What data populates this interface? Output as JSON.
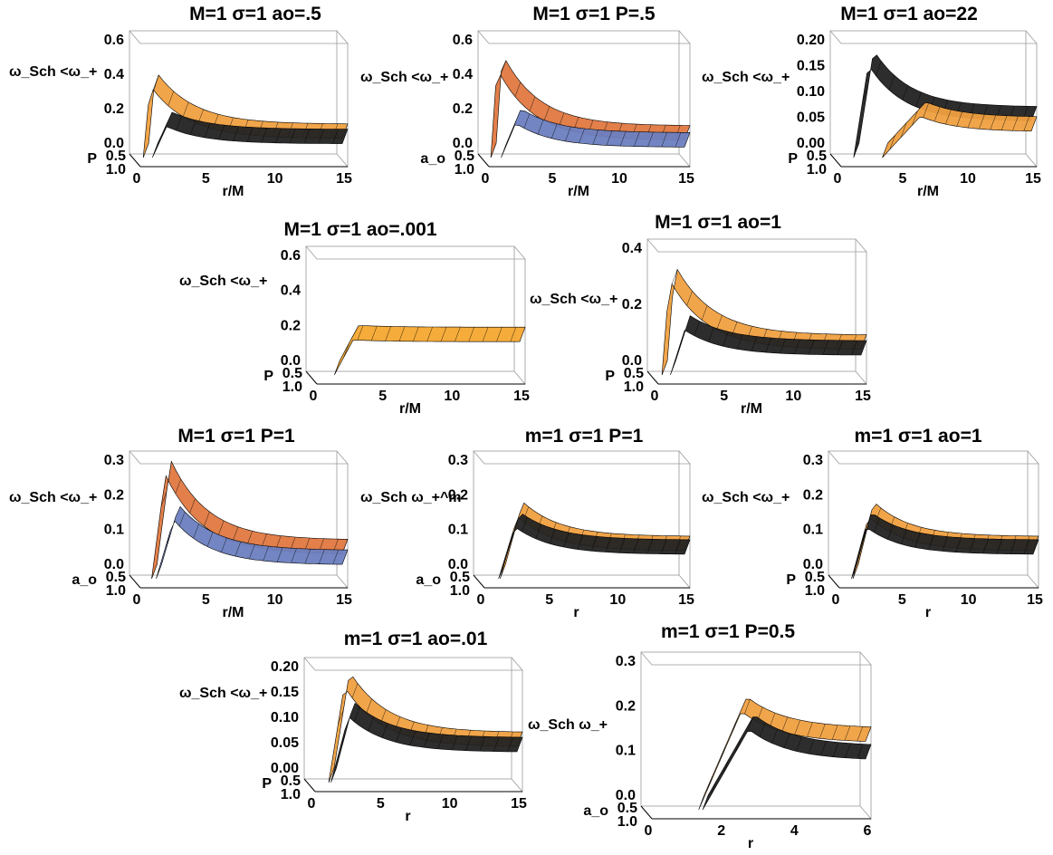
{
  "chart_data": [
    {
      "type": "surface3d",
      "title": "M=1 σ=1 ao=.5",
      "xlabel": "r/M",
      "ylabel": "P",
      "zlabel": "ω_Sch <ω_+",
      "xticks": [
        "0",
        "5",
        "10",
        "15"
      ],
      "yticks": [
        "0.5",
        "1.0"
      ],
      "zticks": [
        "0.0",
        "0.2",
        "0.4",
        "0.6"
      ],
      "surfaces": [
        {
          "color": "#f0a040",
          "peak_r": 1.1,
          "peak_z": 0.42,
          "tail_z": 0.11
        },
        {
          "color": "#222222",
          "peak_r": 2.3,
          "peak_z": 0.18,
          "tail_z": 0.08
        }
      ]
    },
    {
      "type": "surface3d",
      "title": "M=1 σ=1 P=.5",
      "xlabel": "r/M",
      "ylabel": "a_o",
      "zlabel": "ω_Sch <ω_+",
      "xticks": [
        "0",
        "5",
        "10",
        "15"
      ],
      "yticks": [
        "0.5",
        "1.0"
      ],
      "zticks": [
        "0.0",
        "0.2",
        "0.4",
        "0.6"
      ],
      "surfaces": [
        {
          "color": "#e07840",
          "peak_r": 1.0,
          "peak_z": 0.52,
          "tail_z": 0.1
        },
        {
          "color": "#6b7fc0",
          "peak_r": 2.4,
          "peak_z": 0.2,
          "tail_z": 0.06
        }
      ]
    },
    {
      "type": "surface3d",
      "title": "M=1 σ=1 ao=22",
      "xlabel": "r/M",
      "ylabel": "P",
      "zlabel": "ω_Sch <ω_+",
      "xticks": [
        "0",
        "5",
        "10",
        "15"
      ],
      "yticks": [
        "0.5",
        "1.0"
      ],
      "zticks": [
        "0.00",
        "0.05",
        "0.10",
        "0.15",
        "0.20"
      ],
      "surfaces": [
        {
          "color": "#222222",
          "peak_r": 2.5,
          "peak_z": 0.18,
          "tail_z": 0.07
        },
        {
          "color": "#f0a040",
          "peak_r": 6.5,
          "peak_z": 0.08,
          "tail_z": 0.05
        }
      ]
    },
    {
      "type": "surface3d",
      "title": "M=1 σ=1 ao=.001",
      "xlabel": "r/M",
      "ylabel": "P",
      "zlabel": "ω_Sch <ω_+",
      "xticks": [
        "0",
        "5",
        "10",
        "15"
      ],
      "yticks": [
        "0.5",
        "1.0"
      ],
      "zticks": [
        "0.0",
        "0.2",
        "0.4",
        "0.6"
      ],
      "surfaces": [
        {
          "color": "#f5a830",
          "peak_r": 3.0,
          "peak_z": 0.2,
          "tail_z": 0.19
        }
      ]
    },
    {
      "type": "surface3d",
      "title": "M=1 σ=1 ao=1",
      "xlabel": "r/M",
      "ylabel": "P",
      "zlabel": "ω_Sch <ω_+",
      "xticks": [
        "0",
        "5",
        "10",
        "15"
      ],
      "yticks": [
        "0.5",
        "1.0"
      ],
      "zticks": [
        "0.0",
        "0.2",
        "0.4"
      ],
      "surfaces": [
        {
          "color": "#f0a040",
          "peak_r": 1.2,
          "peak_z": 0.34,
          "tail_z": 0.09
        },
        {
          "color": "#222222",
          "peak_r": 2.3,
          "peak_z": 0.16,
          "tail_z": 0.07
        }
      ]
    },
    {
      "type": "surface3d",
      "title": "M=1 σ=1 P=1",
      "xlabel": "r/M",
      "ylabel": "a_o",
      "zlabel": "ω_Sch <ω_+",
      "xticks": [
        "0",
        "5",
        "10",
        "15"
      ],
      "yticks": [
        "0.5",
        "1.0"
      ],
      "zticks": [
        "0.0",
        "0.1",
        "0.2",
        "0.3"
      ],
      "surfaces": [
        {
          "color": "#e07840",
          "peak_r": 2.2,
          "peak_z": 0.3,
          "tail_z": 0.07
        },
        {
          "color": "#6b7fc0",
          "peak_r": 2.8,
          "peak_z": 0.17,
          "tail_z": 0.04
        }
      ]
    },
    {
      "type": "surface3d",
      "title": "m=1 σ=1 P=1",
      "xlabel": "r",
      "ylabel": "a_o",
      "zlabel": "ω_Sch ω_+^m",
      "xticks": [
        "0",
        "5",
        "10",
        "15"
      ],
      "yticks": [
        "0.5",
        "1.0"
      ],
      "zticks": [
        "0.0",
        "0.1",
        "0.2",
        "0.3"
      ],
      "surfaces": [
        {
          "color": "#f0a040",
          "peak_r": 2.8,
          "peak_z": 0.18,
          "tail_z": 0.08
        },
        {
          "color": "#222222",
          "peak_r": 2.6,
          "peak_z": 0.15,
          "tail_z": 0.07
        }
      ]
    },
    {
      "type": "surface3d",
      "title": "m=1 σ=1 ao=1",
      "xlabel": "r",
      "ylabel": "P",
      "zlabel": "ω_Sch <ω_+",
      "xticks": [
        "0",
        "5",
        "10",
        "15"
      ],
      "yticks": [
        "0.5",
        "1.0"
      ],
      "zticks": [
        "0.0",
        "0.1",
        "0.2",
        "0.3"
      ],
      "surfaces": [
        {
          "color": "#f0a040",
          "peak_r": 2.6,
          "peak_z": 0.18,
          "tail_z": 0.08
        },
        {
          "color": "#222222",
          "peak_r": 2.4,
          "peak_z": 0.15,
          "tail_z": 0.07
        }
      ]
    },
    {
      "type": "surface3d",
      "title": "m=1 σ=1 ao=.01",
      "xlabel": "r",
      "ylabel": "P",
      "zlabel": "ω_Sch <ω_+",
      "xticks": [
        "0",
        "5",
        "10",
        "15"
      ],
      "yticks": [
        "0.5",
        "1.0"
      ],
      "zticks": [
        "0.00",
        "0.05",
        "0.10",
        "0.15",
        "0.20"
      ],
      "surfaces": [
        {
          "color": "#f0a040",
          "peak_r": 2.5,
          "peak_z": 0.19,
          "tail_z": 0.07
        },
        {
          "color": "#222222",
          "peak_r": 2.8,
          "peak_z": 0.13,
          "tail_z": 0.06
        }
      ]
    },
    {
      "type": "surface3d",
      "title": "m=1 σ=1 P=0.5",
      "xlabel": "r",
      "ylabel": "a_o",
      "zlabel": "ω_Sch ω_+",
      "xticks": [
        "0",
        "2",
        "4",
        "6"
      ],
      "yticks": [
        "0.5",
        "1.0"
      ],
      "zticks": [
        "0.0",
        "0.1",
        "0.2",
        "0.3"
      ],
      "surfaces": [
        {
          "color": "#f0a040",
          "peak_r": 2.6,
          "peak_z": 0.22,
          "tail_z": 0.15
        },
        {
          "color": "#222222",
          "peak_r": 2.8,
          "peak_z": 0.18,
          "tail_z": 0.11
        }
      ]
    }
  ]
}
